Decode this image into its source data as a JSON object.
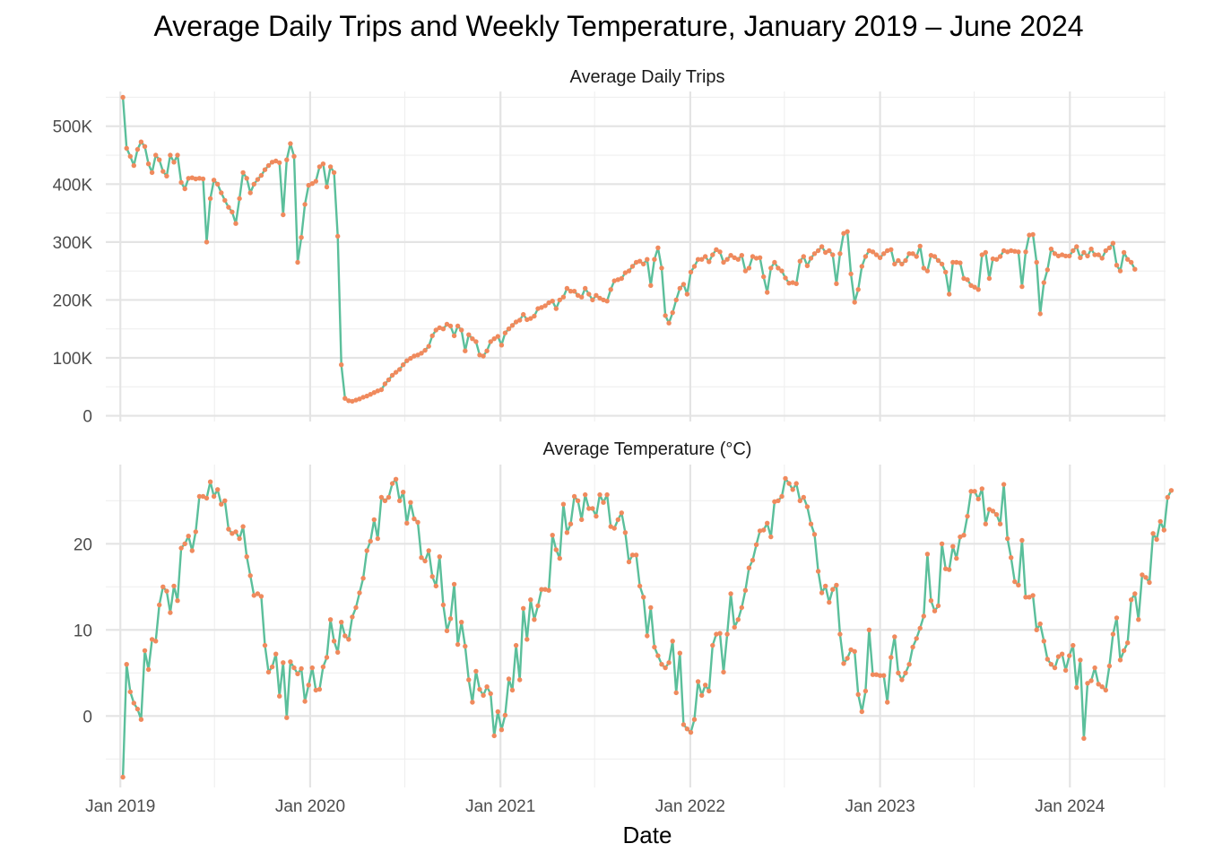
{
  "chart_data": {
    "type": "line",
    "title": "Average Daily Trips and Weekly Temperature, January 2019 – June 2024",
    "xlabel": "Date",
    "x_ticks": [
      "Jan 2019",
      "Jan 2020",
      "Jan 2021",
      "Jan 2022",
      "Jan 2023",
      "Jan 2024"
    ],
    "x_range": [
      "2018-12-04",
      "2024-07-03"
    ],
    "colors": {
      "line": "#5bbf9b",
      "points": "#f08a5d",
      "grid": "#e4e4e4"
    },
    "grid": true,
    "panels": [
      {
        "label": "Average Daily Trips",
        "ylim": [
          -10000,
          560000
        ],
        "y_ticks": [
          {
            "value": 0,
            "label": "0"
          },
          {
            "value": 100000,
            "label": "100K"
          },
          {
            "value": 200000,
            "label": "200K"
          },
          {
            "value": 300000,
            "label": "300K"
          },
          {
            "value": 400000,
            "label": "400K"
          },
          {
            "value": 500000,
            "label": "500K"
          }
        ],
        "series": [
          {
            "start_date": "2019-01-06",
            "interval_days": 7,
            "values": [
              550000,
              462000,
              448000,
              432000,
              460000,
              473000,
              465000,
              435000,
              420000,
              450000,
              442000,
              422000,
              414000,
              450000,
              438000,
              450000,
              403000,
              392000,
              410000,
              411000,
              409000,
              410000,
              409000,
              300000,
              375000,
              407000,
              400000,
              385000,
              372000,
              360000,
              352000,
              332000,
              375000,
              420000,
              410000,
              385000,
              400000,
              408000,
              415000,
              425000,
              432000,
              438000,
              440000,
              437000,
              347000,
              442000,
              470000,
              448000,
              265000,
              308000,
              365000,
              398000,
              401000,
              405000,
              430000,
              435000,
              395000,
              430000,
              420000,
              310000,
              88000,
              30000,
              26000,
              25000,
              27000,
              29000,
              32000,
              34000,
              37000,
              40000,
              43000,
              45000,
              55000,
              62000,
              70000,
              75000,
              80000,
              88000,
              95000,
              99000,
              103000,
              105000,
              108000,
              113000,
              120000,
              138000,
              148000,
              152000,
              150000,
              158000,
              155000,
              138000,
              155000,
              148000,
              112000,
              140000,
              133000,
              128000,
              105000,
              103000,
              112000,
              128000,
              133000,
              137000,
              122000,
              143000,
              150000,
              156000,
              162000,
              165000,
              175000,
              166000,
              168000,
              172000,
              185000,
              187000,
              190000,
              195000,
              198000,
              185000,
              200000,
              205000,
              220000,
              215000,
              215000,
              208000,
              205000,
              220000,
              210000,
              200000,
              208000,
              203000,
              200000,
              198000,
              218000,
              233000,
              235000,
              237000,
              247000,
              250000,
              258000,
              265000,
              267000,
              262000,
              270000,
              225000,
              270000,
              290000,
              255000,
              173000,
              160000,
              178000,
              200000,
              220000,
              227000,
              210000,
              248000,
              258000,
              270000,
              270000,
              275000,
              266000,
              278000,
              287000,
              283000,
              265000,
              270000,
              277000,
              273000,
              270000,
              277000,
              250000,
              255000,
              275000,
              272000,
              273000,
              240000,
              213000,
              255000,
              265000,
              255000,
              250000,
              238000,
              229000,
              230000,
              228000,
              267000,
              275000,
              259000,
              272000,
              280000,
              285000,
              292000,
              282000,
              285000,
              278000,
              228000,
              280000,
              315000,
              318000,
              245000,
              196000,
              218000,
              258000,
              275000,
              285000,
              283000,
              278000,
              273000,
              280000,
              285000,
              287000,
              262000,
              268000,
              262000,
              268000,
              280000,
              280000,
              275000,
              293000,
              255000,
              250000,
              277000,
              275000,
              268000,
              262000,
              248000,
              210000,
              265000,
              265000,
              264000,
              237000,
              235000,
              225000,
              222000,
              218000,
              278000,
              282000,
              237000,
              271000,
              270000,
              275000,
              285000,
              283000,
              285000,
              284000,
              283000,
              223000,
              283000,
              312000,
              313000,
              265000,
              176000,
              230000,
              252000,
              288000,
              280000,
              276000,
              278000,
              276000,
              276000,
              285000,
              292000,
              273000,
              282000,
              276000,
              288000,
              278000,
              278000,
              272000,
              285000,
              290000,
              298000,
              260000,
              250000,
              282000,
              270000,
              265000,
              253000
            ]
          }
        ]
      },
      {
        "label": "Average Temperature (°C)",
        "ylim": [
          -8.3,
          29.2
        ],
        "y_ticks": [
          {
            "value": 0,
            "label": "0"
          },
          {
            "value": 10,
            "label": "10"
          },
          {
            "value": 20,
            "label": "20"
          }
        ],
        "series": [
          {
            "start_date": "2019-01-06",
            "interval_days": 7,
            "values": [
              -7.1,
              6.0,
              2.8,
              1.5,
              0.8,
              -0.4,
              7.6,
              5.4,
              8.9,
              8.7,
              12.9,
              15.0,
              14.5,
              12.0,
              15.1,
              13.4,
              19.5,
              20.0,
              20.9,
              19.2,
              21.4,
              25.5,
              25.5,
              25.3,
              27.2,
              25.5,
              26.3,
              24.6,
              25.0,
              21.7,
              21.2,
              21.4,
              20.6,
              22.0,
              18.5,
              16.3,
              14.0,
              14.2,
              13.9,
              8.2,
              5.1,
              5.7,
              7.2,
              2.3,
              6.2,
              -0.2,
              6.3,
              5.6,
              4.9,
              5.5,
              1.7,
              3.6,
              5.6,
              3.0,
              3.1,
              5.7,
              6.8,
              11.2,
              8.7,
              7.4,
              10.9,
              9.3,
              8.9,
              11.5,
              12.6,
              14.3,
              16.0,
              19.2,
              20.3,
              22.8,
              20.6,
              25.4,
              25.0,
              25.4,
              27.0,
              27.5,
              25.0,
              26.0,
              22.4,
              24.8,
              22.9,
              22.5,
              18.4,
              18.0,
              19.2,
              16.2,
              15.1,
              18.5,
              12.9,
              9.9,
              11.3,
              15.3,
              8.3,
              10.9,
              8.1,
              4.2,
              1.6,
              5.2,
              3.1,
              2.4,
              3.4,
              2.6,
              -2.3,
              0.5,
              -1.6,
              0.1,
              4.3,
              3.0,
              8.2,
              4.2,
              12.5,
              8.9,
              13.5,
              11.2,
              12.8,
              14.7,
              14.7,
              14.6,
              21.0,
              19.3,
              18.3,
              24.6,
              21.3,
              22.3,
              25.5,
              25.0,
              22.8,
              25.7,
              24.1,
              24.1,
              23.2,
              25.7,
              24.8,
              25.7,
              22.0,
              21.8,
              22.8,
              23.6,
              21.3,
              17.9,
              18.7,
              18.7,
              15.1,
              13.8,
              9.3,
              12.6,
              8.0,
              7.0,
              6.0,
              5.6,
              6.2,
              8.7,
              2.7,
              7.3,
              -1.0,
              -1.5,
              -1.9,
              -0.4,
              4.0,
              2.4,
              3.6,
              2.9,
              8.2,
              9.5,
              9.6,
              5.1,
              9.5,
              14.2,
              10.3,
              11.2,
              12.6,
              14.6,
              17.2,
              18.1,
              19.9,
              21.5,
              21.6,
              22.4,
              20.8,
              24.9,
              25.0,
              25.5,
              27.6,
              27.0,
              26.3,
              27.0,
              25.0,
              25.4,
              24.3,
              22.3,
              21.1,
              16.8,
              14.3,
              15.1,
              13.2,
              14.7,
              15.2,
              9.5,
              6.1,
              6.7,
              7.7,
              7.5,
              2.5,
              0.5,
              2.9,
              10.0,
              4.8,
              4.8,
              4.7,
              4.7,
              1.6,
              6.8,
              9.2,
              5.0,
              4.2,
              5.0,
              6.0,
              8.0,
              9.0,
              10.2,
              11.6,
              18.8,
              13.4,
              12.2,
              12.8,
              20.0,
              17.1,
              17.0,
              19.7,
              18.3,
              20.8,
              21.0,
              23.2,
              26.1,
              26.1,
              25.2,
              26.4,
              22.3,
              24.0,
              23.8,
              23.4,
              22.3,
              26.9,
              20.6,
              18.4,
              15.6,
              15.2,
              20.4,
              13.8,
              13.8,
              14.0,
              10.0,
              10.7,
              8.7,
              6.6,
              6.0,
              5.6,
              6.9,
              7.2,
              5.3,
              7.0,
              8.2,
              3.3,
              6.5,
              -2.6,
              3.8,
              4.1,
              5.6,
              3.7,
              3.4,
              3.0,
              5.8,
              9.5,
              11.4,
              6.5,
              7.6,
              8.5,
              13.5,
              14.2,
              11.2,
              16.4,
              16.1,
              15.5,
              21.2,
              20.5,
              22.6,
              21.6,
              25.4,
              26.2
            ]
          }
        ]
      }
    ]
  }
}
